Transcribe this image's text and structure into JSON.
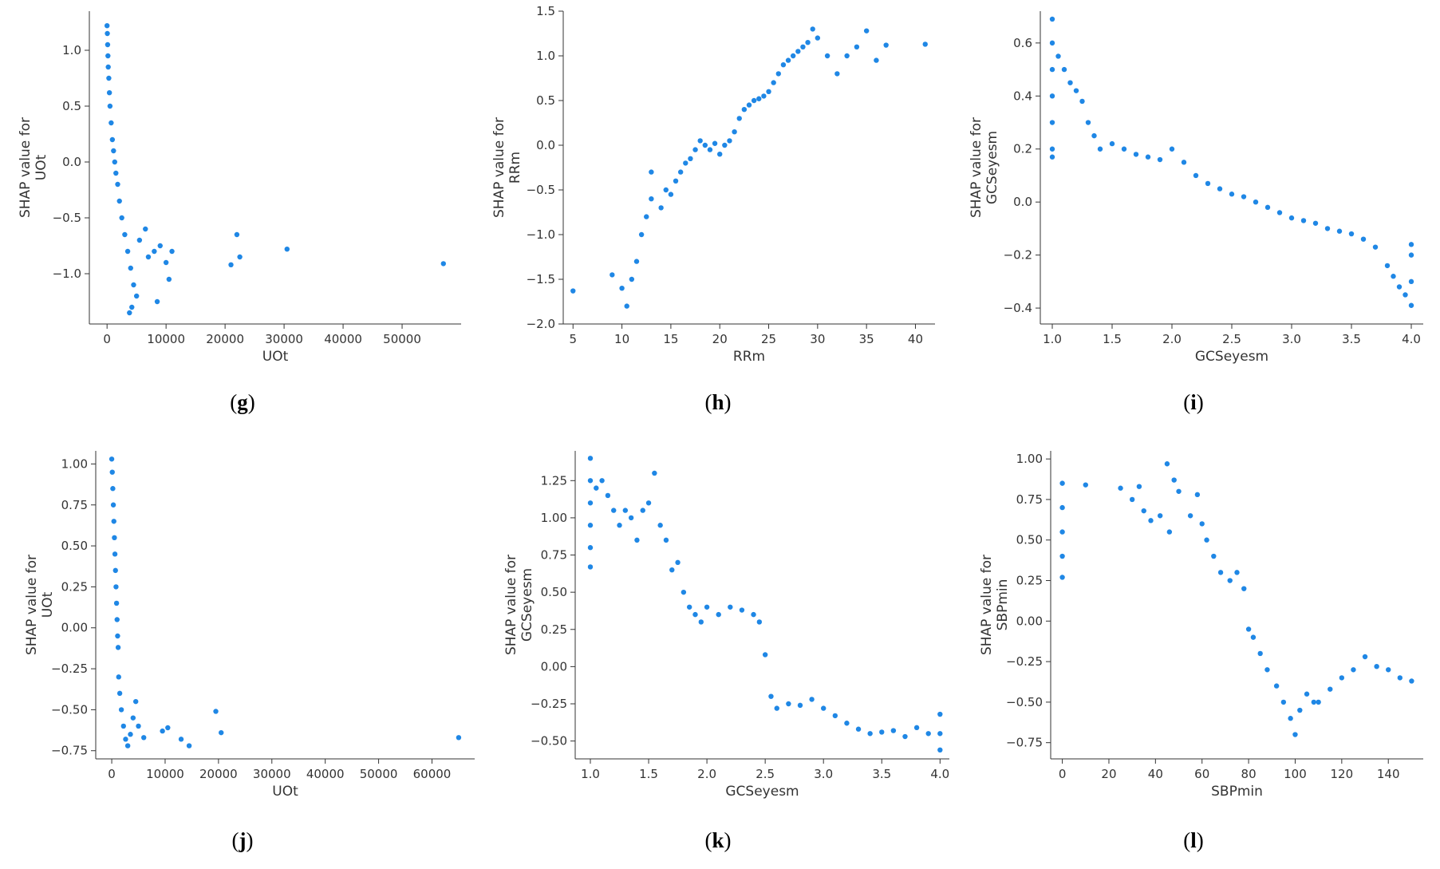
{
  "point_color": "#1f87e5",
  "chart_data": [
    {
      "type": "scatter",
      "id": "g",
      "panel_label": "g",
      "xlabel": "UOt",
      "ylabel": [
        "SHAP value for",
        "UOt"
      ],
      "xlim": [
        -3000,
        60000
      ],
      "ylim": [
        -1.45,
        1.35
      ],
      "xticks": [
        0,
        10000,
        20000,
        30000,
        40000,
        50000
      ],
      "xtick_labels": [
        "0",
        "10000",
        "20000",
        "30000",
        "40000",
        "50000"
      ],
      "yticks": [
        -1.0,
        -0.5,
        0.0,
        0.5,
        1.0
      ],
      "ytick_labels": [
        "−1.0",
        "−0.5",
        "0.0",
        "0.5",
        "1.0"
      ],
      "points": [
        [
          0,
          1.22
        ],
        [
          50,
          1.15
        ],
        [
          100,
          1.05
        ],
        [
          150,
          0.95
        ],
        [
          200,
          0.85
        ],
        [
          300,
          0.75
        ],
        [
          400,
          0.62
        ],
        [
          500,
          0.5
        ],
        [
          700,
          0.35
        ],
        [
          900,
          0.2
        ],
        [
          1100,
          0.1
        ],
        [
          1300,
          0.0
        ],
        [
          1500,
          -0.1
        ],
        [
          1800,
          -0.2
        ],
        [
          2100,
          -0.35
        ],
        [
          2500,
          -0.5
        ],
        [
          3000,
          -0.65
        ],
        [
          3500,
          -0.8
        ],
        [
          4000,
          -0.95
        ],
        [
          4500,
          -1.1
        ],
        [
          5000,
          -1.2
        ],
        [
          4200,
          -1.3
        ],
        [
          3800,
          -1.35
        ],
        [
          5500,
          -0.7
        ],
        [
          6500,
          -0.6
        ],
        [
          7000,
          -0.85
        ],
        [
          8000,
          -0.8
        ],
        [
          9000,
          -0.75
        ],
        [
          10000,
          -0.9
        ],
        [
          11000,
          -0.8
        ],
        [
          10500,
          -1.05
        ],
        [
          8500,
          -1.25
        ],
        [
          21000,
          -0.92
        ],
        [
          22000,
          -0.65
        ],
        [
          22500,
          -0.85
        ],
        [
          30500,
          -0.78
        ],
        [
          57000,
          -0.91
        ]
      ]
    },
    {
      "type": "scatter",
      "id": "h",
      "panel_label": "h",
      "xlabel": "RRm",
      "ylabel": [
        "SHAP value for",
        "RRm"
      ],
      "xlim": [
        4,
        42
      ],
      "ylim": [
        -2.0,
        1.5
      ],
      "xticks": [
        5,
        10,
        15,
        20,
        25,
        30,
        35,
        40
      ],
      "xtick_labels": [
        "5",
        "10",
        "15",
        "20",
        "25",
        "30",
        "35",
        "40"
      ],
      "yticks": [
        -2.0,
        -1.5,
        -1.0,
        -0.5,
        0.0,
        0.5,
        1.0,
        1.5
      ],
      "ytick_labels": [
        "−2.0",
        "−1.5",
        "−1.0",
        "−0.5",
        "0.0",
        "0.5",
        "1.0",
        "1.5"
      ],
      "points": [
        [
          5,
          -1.63
        ],
        [
          9,
          -1.45
        ],
        [
          10,
          -1.6
        ],
        [
          10.5,
          -1.8
        ],
        [
          11,
          -1.5
        ],
        [
          11.5,
          -1.3
        ],
        [
          12,
          -1.0
        ],
        [
          12.5,
          -0.8
        ],
        [
          13,
          -0.6
        ],
        [
          13,
          -0.3
        ],
        [
          14,
          -0.7
        ],
        [
          14.5,
          -0.5
        ],
        [
          15,
          -0.55
        ],
        [
          15.5,
          -0.4
        ],
        [
          16,
          -0.3
        ],
        [
          16.5,
          -0.2
        ],
        [
          17,
          -0.15
        ],
        [
          17.5,
          -0.05
        ],
        [
          18,
          0.05
        ],
        [
          18.5,
          0.0
        ],
        [
          19,
          -0.05
        ],
        [
          19.5,
          0.02
        ],
        [
          20,
          -0.1
        ],
        [
          20.5,
          0.0
        ],
        [
          21,
          0.05
        ],
        [
          21.5,
          0.15
        ],
        [
          22,
          0.3
        ],
        [
          22.5,
          0.4
        ],
        [
          23,
          0.45
        ],
        [
          23.5,
          0.5
        ],
        [
          24,
          0.52
        ],
        [
          24.5,
          0.55
        ],
        [
          25,
          0.6
        ],
        [
          25.5,
          0.7
        ],
        [
          26,
          0.8
        ],
        [
          26.5,
          0.9
        ],
        [
          27,
          0.95
        ],
        [
          27.5,
          1.0
        ],
        [
          28,
          1.05
        ],
        [
          28.5,
          1.1
        ],
        [
          29,
          1.15
        ],
        [
          29.5,
          1.3
        ],
        [
          30,
          1.2
        ],
        [
          31,
          1.0
        ],
        [
          32,
          0.8
        ],
        [
          33,
          1.0
        ],
        [
          34,
          1.1
        ],
        [
          35,
          1.28
        ],
        [
          36,
          0.95
        ],
        [
          37,
          1.12
        ],
        [
          41,
          1.13
        ]
      ]
    },
    {
      "type": "scatter",
      "id": "i",
      "panel_label": "i",
      "xlabel": "GCSeyesm",
      "ylabel": [
        "SHAP value for",
        "GCSeyesm"
      ],
      "xlim": [
        0.9,
        4.1
      ],
      "ylim": [
        -0.46,
        0.72
      ],
      "xticks": [
        1.0,
        1.5,
        2.0,
        2.5,
        3.0,
        3.5,
        4.0
      ],
      "xtick_labels": [
        "1.0",
        "1.5",
        "2.0",
        "2.5",
        "3.0",
        "3.5",
        "4.0"
      ],
      "yticks": [
        -0.4,
        -0.2,
        0.0,
        0.2,
        0.4,
        0.6
      ],
      "ytick_labels": [
        "−0.4",
        "−0.2",
        "0.0",
        "0.2",
        "0.4",
        "0.6"
      ],
      "points": [
        [
          1.0,
          0.69
        ],
        [
          1.0,
          0.6
        ],
        [
          1.0,
          0.5
        ],
        [
          1.0,
          0.4
        ],
        [
          1.0,
          0.3
        ],
        [
          1.0,
          0.2
        ],
        [
          1.0,
          0.17
        ],
        [
          1.05,
          0.55
        ],
        [
          1.1,
          0.5
        ],
        [
          1.15,
          0.45
        ],
        [
          1.2,
          0.42
        ],
        [
          1.25,
          0.38
        ],
        [
          1.3,
          0.3
        ],
        [
          1.35,
          0.25
        ],
        [
          1.4,
          0.2
        ],
        [
          1.5,
          0.22
        ],
        [
          1.6,
          0.2
        ],
        [
          1.7,
          0.18
        ],
        [
          1.8,
          0.17
        ],
        [
          1.9,
          0.16
        ],
        [
          2.0,
          0.2
        ],
        [
          2.1,
          0.15
        ],
        [
          2.2,
          0.1
        ],
        [
          2.3,
          0.07
        ],
        [
          2.4,
          0.05
        ],
        [
          2.5,
          0.03
        ],
        [
          2.6,
          0.02
        ],
        [
          2.7,
          0.0
        ],
        [
          2.8,
          -0.02
        ],
        [
          2.9,
          -0.04
        ],
        [
          3.0,
          -0.06
        ],
        [
          3.1,
          -0.07
        ],
        [
          3.2,
          -0.08
        ],
        [
          3.3,
          -0.1
        ],
        [
          3.4,
          -0.11
        ],
        [
          3.5,
          -0.12
        ],
        [
          3.6,
          -0.14
        ],
        [
          3.7,
          -0.17
        ],
        [
          3.8,
          -0.24
        ],
        [
          3.85,
          -0.28
        ],
        [
          3.9,
          -0.32
        ],
        [
          3.95,
          -0.35
        ],
        [
          4.0,
          -0.39
        ],
        [
          4.0,
          -0.3
        ],
        [
          4.0,
          -0.2
        ],
        [
          4.0,
          -0.16
        ]
      ]
    },
    {
      "type": "scatter",
      "id": "j",
      "panel_label": "j",
      "xlabel": "UOt",
      "ylabel": [
        "SHAP value for",
        "UOt"
      ],
      "xlim": [
        -3000,
        68000
      ],
      "ylim": [
        -0.8,
        1.08
      ],
      "xticks": [
        0,
        10000,
        20000,
        30000,
        40000,
        50000,
        60000
      ],
      "xtick_labels": [
        "0",
        "10000",
        "20000",
        "30000",
        "40000",
        "50000",
        "60000"
      ],
      "yticks": [
        -0.75,
        -0.5,
        -0.25,
        0.0,
        0.25,
        0.5,
        0.75,
        1.0
      ],
      "ytick_labels": [
        "−0.75",
        "−0.50",
        "−0.25",
        "0.00",
        "0.25",
        "0.50",
        "0.75",
        "1.00"
      ],
      "points": [
        [
          0,
          1.03
        ],
        [
          100,
          0.95
        ],
        [
          200,
          0.85
        ],
        [
          300,
          0.75
        ],
        [
          400,
          0.65
        ],
        [
          500,
          0.55
        ],
        [
          600,
          0.45
        ],
        [
          700,
          0.35
        ],
        [
          800,
          0.25
        ],
        [
          900,
          0.15
        ],
        [
          1000,
          0.05
        ],
        [
          1100,
          -0.05
        ],
        [
          1200,
          -0.12
        ],
        [
          1300,
          -0.3
        ],
        [
          1500,
          -0.4
        ],
        [
          1800,
          -0.5
        ],
        [
          2200,
          -0.6
        ],
        [
          2600,
          -0.68
        ],
        [
          3000,
          -0.72
        ],
        [
          3500,
          -0.65
        ],
        [
          4000,
          -0.55
        ],
        [
          4500,
          -0.45
        ],
        [
          5000,
          -0.6
        ],
        [
          6000,
          -0.67
        ],
        [
          9500,
          -0.63
        ],
        [
          10500,
          -0.61
        ],
        [
          13000,
          -0.68
        ],
        [
          14500,
          -0.72
        ],
        [
          19500,
          -0.51
        ],
        [
          20500,
          -0.64
        ],
        [
          65000,
          -0.67
        ]
      ]
    },
    {
      "type": "scatter",
      "id": "k",
      "panel_label": "k",
      "xlabel": "GCSeyesm",
      "ylabel": [
        "SHAP value for",
        "GCSeyesm"
      ],
      "xlim": [
        0.87,
        4.08
      ],
      "ylim": [
        -0.62,
        1.45
      ],
      "xticks": [
        1.0,
        1.5,
        2.0,
        2.5,
        3.0,
        3.5,
        4.0
      ],
      "xtick_labels": [
        "1.0",
        "1.5",
        "2.0",
        "2.5",
        "3.0",
        "3.5",
        "4.0"
      ],
      "yticks": [
        -0.5,
        -0.25,
        0.0,
        0.25,
        0.5,
        0.75,
        1.0,
        1.25
      ],
      "ytick_labels": [
        "−0.50",
        "−0.25",
        "0.00",
        "0.25",
        "0.50",
        "0.75",
        "1.00",
        "1.25"
      ],
      "points": [
        [
          1.0,
          1.4
        ],
        [
          1.0,
          1.25
        ],
        [
          1.0,
          1.1
        ],
        [
          1.0,
          0.95
        ],
        [
          1.0,
          0.8
        ],
        [
          1.0,
          0.67
        ],
        [
          1.05,
          1.2
        ],
        [
          1.1,
          1.25
        ],
        [
          1.15,
          1.15
        ],
        [
          1.2,
          1.05
        ],
        [
          1.25,
          0.95
        ],
        [
          1.3,
          1.05
        ],
        [
          1.35,
          1.0
        ],
        [
          1.4,
          0.85
        ],
        [
          1.45,
          1.05
        ],
        [
          1.5,
          1.1
        ],
        [
          1.55,
          1.3
        ],
        [
          1.6,
          0.95
        ],
        [
          1.65,
          0.85
        ],
        [
          1.7,
          0.65
        ],
        [
          1.75,
          0.7
        ],
        [
          1.8,
          0.5
        ],
        [
          1.85,
          0.4
        ],
        [
          1.9,
          0.35
        ],
        [
          1.95,
          0.3
        ],
        [
          2.0,
          0.4
        ],
        [
          2.1,
          0.35
        ],
        [
          2.2,
          0.4
        ],
        [
          2.3,
          0.38
        ],
        [
          2.4,
          0.35
        ],
        [
          2.45,
          0.3
        ],
        [
          2.5,
          0.08
        ],
        [
          2.55,
          -0.2
        ],
        [
          2.6,
          -0.28
        ],
        [
          2.7,
          -0.25
        ],
        [
          2.8,
          -0.26
        ],
        [
          2.9,
          -0.22
        ],
        [
          3.0,
          -0.28
        ],
        [
          3.1,
          -0.33
        ],
        [
          3.2,
          -0.38
        ],
        [
          3.3,
          -0.42
        ],
        [
          3.4,
          -0.45
        ],
        [
          3.5,
          -0.44
        ],
        [
          3.6,
          -0.43
        ],
        [
          3.7,
          -0.47
        ],
        [
          3.8,
          -0.41
        ],
        [
          3.9,
          -0.45
        ],
        [
          4.0,
          -0.56
        ],
        [
          4.0,
          -0.45
        ],
        [
          4.0,
          -0.32
        ]
      ]
    },
    {
      "type": "scatter",
      "id": "l",
      "panel_label": "l",
      "xlabel": "SBPmin",
      "ylabel": [
        "SHAP value for",
        "SBPmin"
      ],
      "xlim": [
        -5,
        155
      ],
      "ylim": [
        -0.85,
        1.05
      ],
      "xticks": [
        0,
        20,
        40,
        60,
        80,
        100,
        120,
        140
      ],
      "xtick_labels": [
        "0",
        "20",
        "40",
        "60",
        "80",
        "100",
        "120",
        "140"
      ],
      "yticks": [
        -0.75,
        -0.5,
        -0.25,
        0.0,
        0.25,
        0.5,
        0.75,
        1.0
      ],
      "ytick_labels": [
        "−0.75",
        "−0.50",
        "−0.25",
        "0.00",
        "0.25",
        "0.50",
        "0.75",
        "1.00"
      ],
      "points": [
        [
          0,
          0.85
        ],
        [
          0,
          0.7
        ],
        [
          0,
          0.55
        ],
        [
          0,
          0.4
        ],
        [
          0,
          0.27
        ],
        [
          10,
          0.84
        ],
        [
          25,
          0.82
        ],
        [
          30,
          0.75
        ],
        [
          33,
          0.83
        ],
        [
          35,
          0.68
        ],
        [
          38,
          0.62
        ],
        [
          42,
          0.65
        ],
        [
          45,
          0.97
        ],
        [
          46,
          0.55
        ],
        [
          48,
          0.87
        ],
        [
          50,
          0.8
        ],
        [
          55,
          0.65
        ],
        [
          58,
          0.78
        ],
        [
          60,
          0.6
        ],
        [
          62,
          0.5
        ],
        [
          65,
          0.4
        ],
        [
          68,
          0.3
        ],
        [
          72,
          0.25
        ],
        [
          75,
          0.3
        ],
        [
          78,
          0.2
        ],
        [
          80,
          -0.05
        ],
        [
          82,
          -0.1
        ],
        [
          85,
          -0.2
        ],
        [
          88,
          -0.3
        ],
        [
          92,
          -0.4
        ],
        [
          95,
          -0.5
        ],
        [
          98,
          -0.6
        ],
        [
          100,
          -0.7
        ],
        [
          102,
          -0.55
        ],
        [
          105,
          -0.45
        ],
        [
          108,
          -0.5
        ],
        [
          110,
          -0.5
        ],
        [
          115,
          -0.42
        ],
        [
          120,
          -0.35
        ],
        [
          125,
          -0.3
        ],
        [
          130,
          -0.22
        ],
        [
          135,
          -0.28
        ],
        [
          140,
          -0.3
        ],
        [
          145,
          -0.35
        ],
        [
          150,
          -0.37
        ]
      ]
    }
  ]
}
